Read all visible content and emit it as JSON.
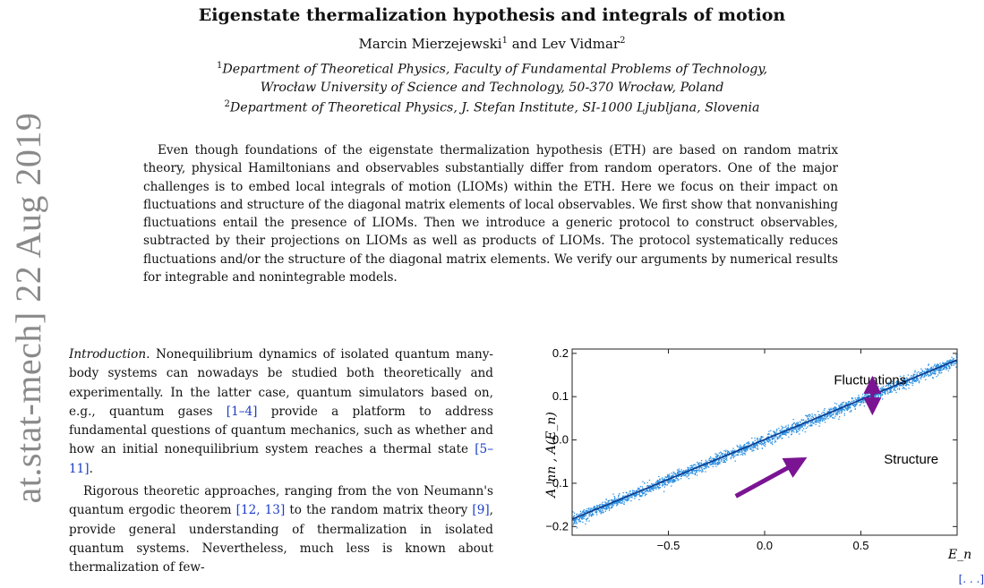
{
  "sidebar": {
    "stamp": "at.stat-mech]  22 Aug 2019"
  },
  "paper": {
    "title": "Eigenstate thermalization hypothesis and integrals of motion",
    "authors": [
      {
        "name": "Marcin Mierzejewski",
        "sup": "1"
      },
      {
        "name": "Lev Vidmar",
        "sup": "2"
      }
    ],
    "authors_join": "and",
    "affiliations": [
      {
        "sup": "1",
        "line1": "Department of Theoretical Physics, Faculty of Fundamental Problems of Technology,",
        "line2": "Wrocław University of Science and Technology, 50-370 Wrocław, Poland"
      },
      {
        "sup": "2",
        "line1": "Department of Theoretical Physics, J. Stefan Institute, SI-1000 Ljubljana, Slovenia"
      }
    ],
    "abstract": "Even though foundations of the eigenstate thermalization hypothesis (ETH) are based on random matrix theory, physical Hamiltonians and observables substantially differ from random operators. One of the major challenges is to embed local integrals of motion (LIOMs) within the ETH. Here we focus on their impact on fluctuations and structure of the diagonal matrix elements of local observables. We first show that nonvanishing fluctuations entail the presence of LIOMs. Then we introduce a generic protocol to construct observables, subtracted by their projections on LIOMs as well as products of LIOMs. The protocol systematically reduces fluctuations and/or the structure of the diagonal matrix elements. We verify our arguments by numerical results for integrable and nonintegrable models.",
    "intro": {
      "lead": "Introduction.",
      "p1_a": " Nonequilibrium dynamics of isolated quantum many-body systems can nowadays be studied both theoretically and experimentally. In the latter case, quantum simulators based on, e.g., quantum gases ",
      "cite1": "[1–4]",
      "p1_b": " provide a platform to address fundamental questions of quantum mechanics, such as whether and how an initial nonequilibrium system reaches a thermal state ",
      "cite2": "[5–11]",
      "p1_c": ".",
      "p2_a": "Rigorous theoretic approaches, ranging from the von Neumann's quantum ergodic theorem ",
      "cite3": "[12, 13]",
      "p2_b": " to the random matrix theory ",
      "cite4": "[9]",
      "p2_c": ", provide general understanding of thermalization in isolated quantum systems. Nevertheless, much less is known about thermalization of few-"
    },
    "edge_mark": "[. . .]"
  },
  "chart_data": {
    "type": "scatter",
    "xlabel": "E_n",
    "ylabel": "A_nn ,  A(E_n)",
    "xlim": [
      -1.0,
      1.0
    ],
    "ylim": [
      -0.22,
      0.21
    ],
    "xticks": [
      -0.5,
      0.0,
      0.5
    ],
    "yticks": [
      -0.2,
      -0.1,
      0.0,
      0.1,
      0.2
    ],
    "xtick_labels": [
      "−0.5",
      "0.0",
      "0.5"
    ],
    "ytick_labels": [
      "−0.2",
      "−0.1",
      "0.0",
      "0.1",
      "0.2"
    ],
    "fit_line": {
      "x": [
        -1.0,
        1.0
      ],
      "y": [
        -0.183,
        0.185
      ]
    },
    "scatter_band_halfwidth": 0.012,
    "grid": false,
    "annotations": [
      {
        "text": "Fluctuations",
        "x": 0.36,
        "y": 0.128
      },
      {
        "text": "Structure",
        "x": 0.62,
        "y": -0.055
      }
    ],
    "arrows": [
      {
        "kind": "double",
        "x": 0.56,
        "y_from": 0.065,
        "y_to": 0.14
      },
      {
        "kind": "single",
        "x_from": -0.15,
        "y_from": -0.13,
        "x_to": 0.2,
        "y_to": -0.045
      }
    ],
    "colors": {
      "points": "#2b8fe0",
      "line": "#0d3a8c",
      "arrow": "#7b1493",
      "axis": "#222222"
    }
  }
}
